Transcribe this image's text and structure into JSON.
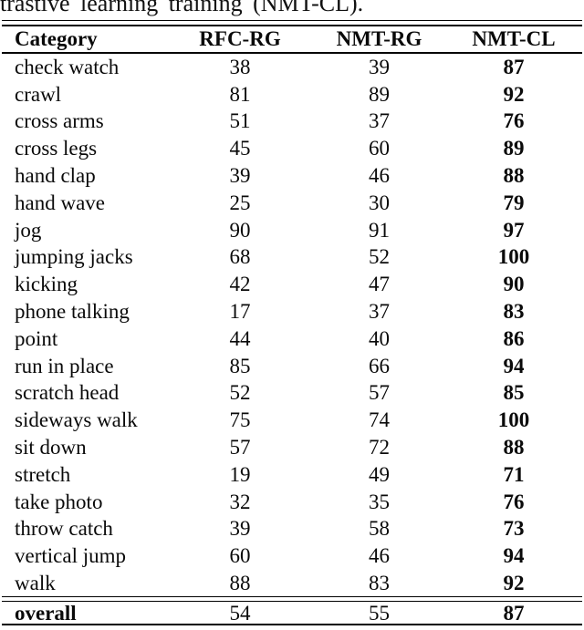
{
  "caption_fragment": "trastive learning training (NMT-CL).",
  "table": {
    "columns": [
      "Category",
      "RFC-RG",
      "NMT-RG",
      "NMT-CL"
    ],
    "rows": [
      {
        "category": "check watch",
        "rfc_rg": "38",
        "nmt_rg": "39",
        "nmt_cl": "87"
      },
      {
        "category": "crawl",
        "rfc_rg": "81",
        "nmt_rg": "89",
        "nmt_cl": "92"
      },
      {
        "category": "cross arms",
        "rfc_rg": "51",
        "nmt_rg": "37",
        "nmt_cl": "76"
      },
      {
        "category": "cross legs",
        "rfc_rg": "45",
        "nmt_rg": "60",
        "nmt_cl": "89"
      },
      {
        "category": "hand clap",
        "rfc_rg": "39",
        "nmt_rg": "46",
        "nmt_cl": "88"
      },
      {
        "category": "hand wave",
        "rfc_rg": "25",
        "nmt_rg": "30",
        "nmt_cl": "79"
      },
      {
        "category": "jog",
        "rfc_rg": "90",
        "nmt_rg": "91",
        "nmt_cl": "97"
      },
      {
        "category": "jumping jacks",
        "rfc_rg": "68",
        "nmt_rg": "52",
        "nmt_cl": "100"
      },
      {
        "category": "kicking",
        "rfc_rg": "42",
        "nmt_rg": "47",
        "nmt_cl": "90"
      },
      {
        "category": "phone talking",
        "rfc_rg": "17",
        "nmt_rg": "37",
        "nmt_cl": "83"
      },
      {
        "category": "point",
        "rfc_rg": "44",
        "nmt_rg": "40",
        "nmt_cl": "86"
      },
      {
        "category": "run in place",
        "rfc_rg": "85",
        "nmt_rg": "66",
        "nmt_cl": "94"
      },
      {
        "category": "scratch head",
        "rfc_rg": "52",
        "nmt_rg": "57",
        "nmt_cl": "85"
      },
      {
        "category": "sideways walk",
        "rfc_rg": "75",
        "nmt_rg": "74",
        "nmt_cl": "100"
      },
      {
        "category": "sit down",
        "rfc_rg": "57",
        "nmt_rg": "72",
        "nmt_cl": "88"
      },
      {
        "category": "stretch",
        "rfc_rg": "19",
        "nmt_rg": "49",
        "nmt_cl": "71"
      },
      {
        "category": "take photo",
        "rfc_rg": "32",
        "nmt_rg": "35",
        "nmt_cl": "76"
      },
      {
        "category": "throw catch",
        "rfc_rg": "39",
        "nmt_rg": "58",
        "nmt_cl": "73"
      },
      {
        "category": "vertical jump",
        "rfc_rg": "60",
        "nmt_rg": "46",
        "nmt_cl": "94"
      },
      {
        "category": "walk",
        "rfc_rg": "88",
        "nmt_rg": "83",
        "nmt_cl": "92"
      }
    ],
    "overall": {
      "category": "overall",
      "rfc_rg": "54",
      "nmt_rg": "55",
      "nmt_cl": "87"
    }
  },
  "colors": {
    "text": "#0a0a0a",
    "background": "#ffffff",
    "rule": "#000000"
  }
}
